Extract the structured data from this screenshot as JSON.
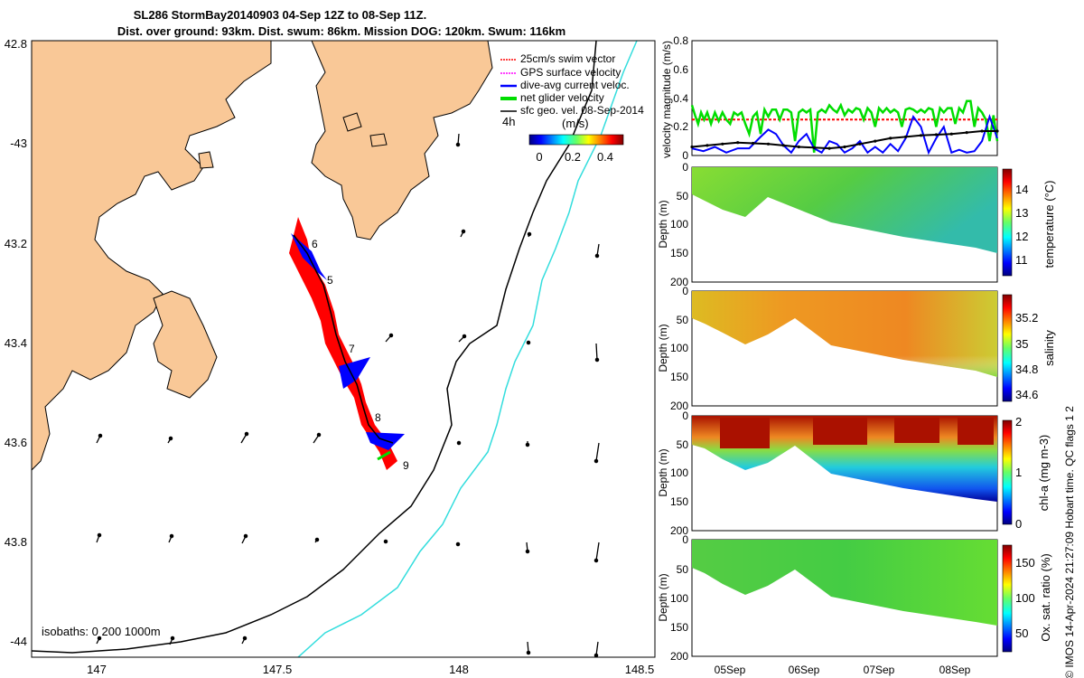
{
  "title_line1": "SL286 StormBay20140903 04-Sep 12Z to 08-Sep 11Z.",
  "title_line2": "Dist. over ground: 93km. Dist. swum: 86km. Mission DOG: 120km. Swum: 116km",
  "credit": "© IMOS 14-Apr-2024 21:27:09 Hobart time. QC flags 1  2",
  "colors": {
    "land": "#f9c897",
    "swim_vector": "#ff0000",
    "gps_velocity": "#ff00ff",
    "dive_avg": "#0000ff",
    "net_glider": "#00dd00",
    "sfc_geo": "#000000",
    "isobath_200": "#000000",
    "isobath_1000": "#33dddd"
  },
  "map": {
    "lat_ticks": [
      "42.8",
      "-43",
      "43.2",
      "43.4",
      "43.6",
      "43.8",
      "-44"
    ],
    "lon_ticks": [
      "147",
      "147.5",
      "148",
      "148.5"
    ],
    "legend": [
      {
        "label": "25cm/s swim vector",
        "color": "#ff0000"
      },
      {
        "label": "GPS surface velocity",
        "color": "#ff00ff"
      },
      {
        "label": "dive-avg current veloc.",
        "color": "#0000ff"
      },
      {
        "label": "net glider velocity",
        "color": "#00dd00"
      },
      {
        "label": "sfc geo. vel. 08-Sep-2014",
        "color": "#000000"
      }
    ],
    "time_step_label": "4h",
    "speed_scale_unit": "(m/s)",
    "speed_scale_ticks": [
      "0",
      "0.2",
      "0.4"
    ],
    "day_markers": [
      "6",
      "5",
      "7",
      "8",
      "9"
    ],
    "isobath_label": "isobaths: 0   200  1000m"
  },
  "chart_data": [
    {
      "type": "line",
      "ylabel": "velocity magnitude (m/s)",
      "ylim": [
        0,
        0.8
      ],
      "yticks": [
        "0",
        "0.2",
        "0.4",
        "0.6",
        "0.8"
      ],
      "xlim": [
        0,
        4
      ],
      "series": [
        {
          "color": "#ff0000",
          "dashed": true,
          "x": [
            0,
            4
          ],
          "values": [
            0.25,
            0.25
          ]
        },
        {
          "color": "#00dd00",
          "x": [
            0,
            0.04,
            0.08,
            0.12,
            0.16,
            0.2,
            0.25,
            0.3,
            0.35,
            0.4,
            0.45,
            0.5,
            0.55,
            0.6,
            0.65,
            0.7,
            0.75,
            0.8,
            0.85,
            0.9,
            0.95,
            1.0,
            1.05,
            1.1,
            1.15,
            1.2,
            1.25,
            1.3,
            1.35,
            1.4,
            1.45,
            1.5,
            1.55,
            1.6,
            1.65,
            1.7,
            1.75,
            1.8,
            1.85,
            1.9,
            1.95,
            2.0,
            2.05,
            2.1,
            2.15,
            2.2,
            2.25,
            2.3,
            2.35,
            2.4,
            2.45,
            2.5,
            2.55,
            2.6,
            2.65,
            2.7,
            2.75,
            2.8,
            2.85,
            2.9,
            2.95,
            3.0,
            3.05,
            3.1,
            3.15,
            3.2,
            3.25,
            3.3,
            3.35,
            3.4,
            3.45,
            3.5,
            3.55,
            3.6,
            3.65,
            3.7,
            3.75,
            3.8,
            3.85,
            3.9,
            3.95,
            4.0
          ],
          "values": [
            0.35,
            0.28,
            0.22,
            0.3,
            0.25,
            0.3,
            0.22,
            0.3,
            0.24,
            0.3,
            0.25,
            0.22,
            0.3,
            0.28,
            0.3,
            0.22,
            0.15,
            0.27,
            0.3,
            0.15,
            0.32,
            0.27,
            0.32,
            0.32,
            0.25,
            0.32,
            0.32,
            0.3,
            0.1,
            0.3,
            0.32,
            0.3,
            0.32,
            0.02,
            0.3,
            0.32,
            0.3,
            0.35,
            0.32,
            0.3,
            0.35,
            0.28,
            0.32,
            0.3,
            0.33,
            0.32,
            0.25,
            0.33,
            0.3,
            0.2,
            0.33,
            0.3,
            0.33,
            0.3,
            0.32,
            0.3,
            0.2,
            0.32,
            0.33,
            0.32,
            0.3,
            0.32,
            0.3,
            0.33,
            0.32,
            0.2,
            0.33,
            0.3,
            0.33,
            0.33,
            0.22,
            0.33,
            0.3,
            0.38,
            0.38,
            0.2,
            0.33,
            0.3,
            0.25,
            0.1,
            0.28,
            0.1
          ]
        },
        {
          "color": "#0000ff",
          "x": [
            0,
            0.15,
            0.3,
            0.45,
            0.6,
            0.75,
            0.9,
            1.0,
            1.1,
            1.2,
            1.3,
            1.4,
            1.5,
            1.6,
            1.7,
            1.8,
            1.9,
            2.0,
            2.1,
            2.2,
            2.3,
            2.4,
            2.5,
            2.6,
            2.7,
            2.8,
            2.9,
            3.0,
            3.1,
            3.2,
            3.3,
            3.4,
            3.5,
            3.6,
            3.7,
            3.8,
            3.9,
            4.0
          ],
          "values": [
            0.05,
            0.03,
            0.06,
            0.02,
            0.05,
            0.05,
            0.13,
            0.18,
            0.15,
            0.07,
            0.02,
            0.1,
            0.15,
            0.05,
            0.02,
            0.1,
            0.08,
            0.02,
            0.05,
            0.1,
            0.02,
            0.06,
            0.02,
            0.08,
            0.03,
            0.12,
            0.27,
            0.2,
            0.02,
            0.12,
            0.2,
            0.02,
            0.04,
            0.02,
            0.03,
            0.1,
            0.27,
            0.12
          ]
        },
        {
          "color": "#000000",
          "x": [
            0,
            0.2,
            0.4,
            0.6,
            0.8,
            1.0,
            1.2,
            1.4,
            1.6,
            1.8,
            2.0,
            2.2,
            2.4,
            2.6,
            2.8,
            3.0,
            3.2,
            3.4,
            3.6,
            3.8,
            4.0
          ],
          "values": [
            0.06,
            0.07,
            0.08,
            0.09,
            0.085,
            0.08,
            0.07,
            0.06,
            0.055,
            0.05,
            0.06,
            0.08,
            0.1,
            0.12,
            0.13,
            0.14,
            0.145,
            0.15,
            0.16,
            0.17,
            0.17
          ]
        }
      ]
    },
    {
      "type": "heatmap",
      "ylabel": "Depth (m)",
      "yticks": [
        "0",
        "50",
        "100",
        "150",
        "200"
      ],
      "ylim": [
        200,
        0
      ],
      "variable": "temperature",
      "clabel": "temperature (°C)",
      "cticks": [
        "11",
        "12",
        "13",
        "14"
      ],
      "crange": [
        10.5,
        15
      ],
      "fill": "#55cc44"
    },
    {
      "type": "heatmap",
      "ylabel": "Depth (m)",
      "yticks": [
        "0",
        "50",
        "100",
        "150",
        "200"
      ],
      "ylim": [
        200,
        0
      ],
      "variable": "salinity",
      "clabel": "salinity",
      "cticks": [
        "34.6",
        "34.8",
        "35",
        "35.2"
      ],
      "crange": [
        34.5,
        35.3
      ],
      "fill": "#ee9922"
    },
    {
      "type": "heatmap",
      "ylabel": "Depth (m)",
      "yticks": [
        "0",
        "50",
        "100",
        "150",
        "200"
      ],
      "ylim": [
        200,
        0
      ],
      "variable": "chl-a",
      "clabel": "chl-a (mg m-3)",
      "cticks": [
        "0",
        "1",
        "2"
      ],
      "crange": [
        0,
        2
      ],
      "fill": "#44bbaa"
    },
    {
      "type": "heatmap",
      "ylabel": "Depth (m)",
      "yticks": [
        "0",
        "50",
        "100",
        "150",
        "200"
      ],
      "ylim": [
        200,
        0
      ],
      "variable": "oxygen saturation",
      "clabel": "Ox. sat. ratio (%)",
      "cticks": [
        "50",
        "100",
        "150"
      ],
      "crange": [
        20,
        170
      ],
      "fill": "#44cc44"
    }
  ],
  "time_axis": [
    "05Sep",
    "06Sep",
    "07Sep",
    "08Sep"
  ]
}
